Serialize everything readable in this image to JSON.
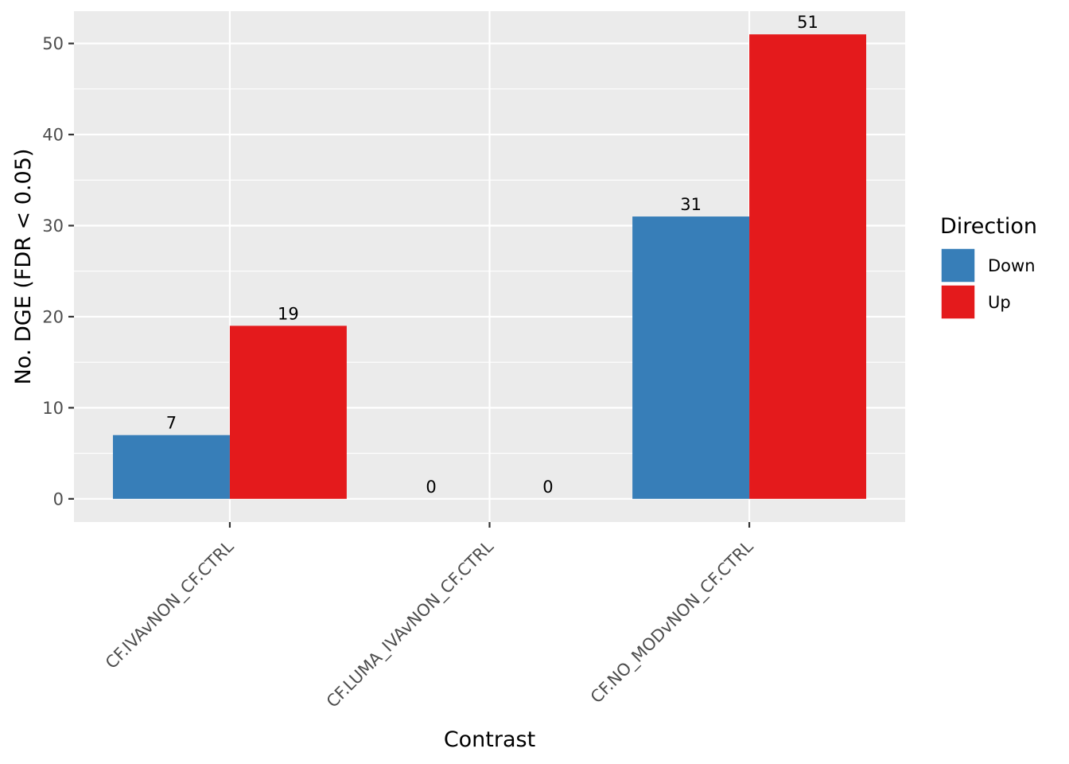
{
  "chart_data": {
    "type": "bar",
    "categories": [
      "CF.IVAvNON_CF.CTRL",
      "CF.LUMA_IVAvNON_CF.CTRL",
      "CF.NO_MODvNON_CF.CTRL"
    ],
    "series": [
      {
        "name": "Down",
        "values": [
          7,
          0,
          31
        ],
        "color": "#377EB8"
      },
      {
        "name": "Up",
        "values": [
          19,
          0,
          51
        ],
        "color": "#E41A1C"
      }
    ],
    "xlabel": "Contrast",
    "ylabel": "No. DGE (FDR < 0.05)",
    "ylim": [
      -2.55,
      53.55
    ],
    "yticks": [
      0,
      10,
      20,
      30,
      40,
      50
    ],
    "grid": true,
    "panel_background": "#EBEBEB",
    "legend": {
      "title": "Direction",
      "position": "right"
    }
  }
}
